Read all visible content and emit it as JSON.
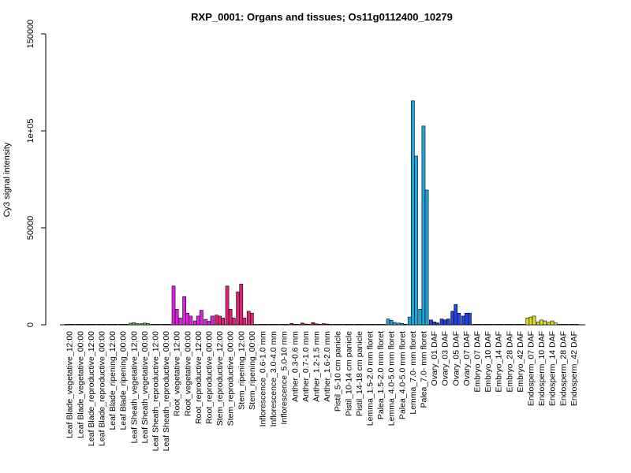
{
  "chart_data": {
    "type": "bar",
    "title": "RXP_0001: Organs and tissues; Os11g0112400_10279",
    "xlabel": "",
    "ylabel": "Cy3 signal intensity",
    "ylim": [
      0,
      150000
    ],
    "yticks": [
      {
        "value": 0,
        "label": "0"
      },
      {
        "value": 50000,
        "label": "50000"
      },
      {
        "value": 100000,
        "label": "1e+05"
      },
      {
        "value": 150000,
        "label": "150000"
      }
    ],
    "grid": false,
    "legend": "none",
    "groups": [
      {
        "label": "Leaf Blade_vegetative_12:00",
        "color": "#5e7a3a",
        "values": [
          120,
          110,
          140
        ]
      },
      {
        "label": "Leaf Blade_vegetative_00:00",
        "color": "#5e7a3a",
        "values": [
          100,
          130,
          120
        ]
      },
      {
        "label": "Leaf Blade_reproductive_12:00",
        "color": "#5e7a3a",
        "values": [
          150,
          120,
          110
        ]
      },
      {
        "label": "Leaf Blade_reproductive_00:00",
        "color": "#5e7a3a",
        "values": [
          130,
          110,
          140
        ]
      },
      {
        "label": "Leaf Blade_ripening_12:00",
        "color": "#5e7a3a",
        "values": [
          120,
          140,
          100
        ]
      },
      {
        "label": "Leaf Blade_ripening_00:00",
        "color": "#5e7a3a",
        "values": [
          200,
          260,
          180
        ]
      },
      {
        "label": "Leaf Sheath_vegetative_12:00",
        "color": "#66bb55",
        "values": [
          800,
          1100,
          600
        ]
      },
      {
        "label": "Leaf Sheath_vegetative_00:00",
        "color": "#66bb55",
        "values": [
          600,
          900,
          700
        ]
      },
      {
        "label": "Leaf Sheath_reproductive_12:00",
        "color": "#66bb55",
        "values": [
          250,
          200,
          300
        ]
      },
      {
        "label": "Leaf Sheath_reproductive_00:00",
        "color": "#66bb55",
        "values": [
          200,
          250,
          180
        ]
      },
      {
        "label": "Root_vegetative_12:00",
        "color": "#dd22dd",
        "values": [
          20000,
          8000,
          3500
        ]
      },
      {
        "label": "Root_vegetative_00:00",
        "color": "#dd22dd",
        "values": [
          14500,
          6000,
          4500
        ]
      },
      {
        "label": "Root_reproductive_12:00",
        "color": "#dd22dd",
        "values": [
          2000,
          4500,
          7500
        ]
      },
      {
        "label": "Root_reproductive_00:00",
        "color": "#dd22dd",
        "values": [
          2800,
          1800,
          4500
        ]
      },
      {
        "label": "Stem_reproductive_12:00",
        "color": "#dd2277",
        "values": [
          5000,
          4500,
          3500
        ]
      },
      {
        "label": "Stem_reproductive_00:00",
        "color": "#dd2277",
        "values": [
          20000,
          8000,
          3500
        ]
      },
      {
        "label": "Stem_ripening_12:00",
        "color": "#dd2277",
        "values": [
          17000,
          21000,
          3500
        ]
      },
      {
        "label": "Stem_ripening_00:00",
        "color": "#dd2277",
        "values": [
          7000,
          6000,
          150
        ]
      },
      {
        "label": "Inflorescence_0.6-1.0 mm",
        "color": "#aa2211",
        "values": [
          150,
          120,
          100
        ]
      },
      {
        "label": "Inflorescence_3.0-4.0 mm",
        "color": "#aa2211",
        "values": [
          180,
          150,
          120
        ]
      },
      {
        "label": "Inflorescence_5.0-10 mm",
        "color": "#aa2211",
        "values": [
          200,
          250,
          180
        ]
      },
      {
        "label": "Anther_0.3-0.6 mm",
        "color": "#aa2211",
        "values": [
          700,
          300,
          200
        ]
      },
      {
        "label": "Anther_0.7-1.0 mm",
        "color": "#aa2211",
        "values": [
          900,
          400,
          250
        ]
      },
      {
        "label": "Anther_1.2-1.5 mm",
        "color": "#aa2211",
        "values": [
          1100,
          500,
          300
        ]
      },
      {
        "label": "Anther_1.6-2.0 mm",
        "color": "#aa2211",
        "values": [
          600,
          400,
          250
        ]
      },
      {
        "label": "Pistil_5-10 cm panicle",
        "color": "#cc8822",
        "values": [
          150,
          120,
          100
        ]
      },
      {
        "label": "Pistil_10-14 cm panicle",
        "color": "#cc8822",
        "values": [
          130,
          110,
          120
        ]
      },
      {
        "label": "Pistil_14-18 cm panicle",
        "color": "#cc8822",
        "values": [
          120,
          140,
          110
        ]
      },
      {
        "label": "Lemma_1.5-2.0 mm floret",
        "color": "#22a6d9",
        "values": [
          200,
          180,
          150
        ]
      },
      {
        "label": "Palea_1.5-2.0 mm floret",
        "color": "#22a6d9",
        "values": [
          180,
          160,
          140
        ]
      },
      {
        "label": "Lemma_4.0-5.0 mm floret",
        "color": "#22a6d9",
        "values": [
          3000,
          2300,
          1200
        ]
      },
      {
        "label": "Palea_4.0-5.0 mm floret",
        "color": "#22a6d9",
        "values": [
          900,
          700,
          300
        ]
      },
      {
        "label": "Lemma_7.0- mm floret",
        "color": "#22a6d9",
        "values": [
          4000,
          115500,
          87000
        ]
      },
      {
        "label": "Palea_7.0- mm floret",
        "color": "#22a6d9",
        "values": [
          8000,
          102500,
          69500
        ]
      },
      {
        "label": "Ovary_01 DAF",
        "color": "#2244dd",
        "values": [
          2500,
          1500,
          1000
        ]
      },
      {
        "label": "Ovary_03 DAF",
        "color": "#2244dd",
        "values": [
          3000,
          2500,
          3000
        ]
      },
      {
        "label": "Ovary_05 DAF",
        "color": "#2244dd",
        "values": [
          7000,
          10500,
          6000
        ]
      },
      {
        "label": "Ovary_07 DAF",
        "color": "#2244dd",
        "values": [
          4500,
          6000,
          6000
        ]
      },
      {
        "label": "Embryo_07 DAF",
        "color": "#4455aa",
        "values": [
          150,
          120,
          100
        ]
      },
      {
        "label": "Embryo_10 DAF",
        "color": "#4455aa",
        "values": [
          130,
          150,
          120
        ]
      },
      {
        "label": "Embryo_14 DAF",
        "color": "#4455aa",
        "values": [
          120,
          110,
          140
        ]
      },
      {
        "label": "Embryo_28 DAF",
        "color": "#4455aa",
        "values": [
          140,
          120,
          110
        ]
      },
      {
        "label": "Embryo_42 DAF",
        "color": "#4455aa",
        "values": [
          200,
          150,
          180
        ]
      },
      {
        "label": "Endosperm_07 DAF",
        "color": "#dddd22",
        "values": [
          3500,
          4000,
          4500
        ]
      },
      {
        "label": "Endosperm_10 DAF",
        "color": "#dddd22",
        "values": [
          1500,
          2500,
          2000
        ]
      },
      {
        "label": "Endosperm_14 DAF",
        "color": "#dddd22",
        "values": [
          1300,
          2000,
          1000
        ]
      },
      {
        "label": "Endosperm_28 DAF",
        "color": "#dddd22",
        "values": [
          300,
          250,
          200
        ]
      },
      {
        "label": "Endosperm_42 DAF",
        "color": "#dddd22",
        "values": [
          250,
          200,
          180
        ]
      }
    ]
  }
}
